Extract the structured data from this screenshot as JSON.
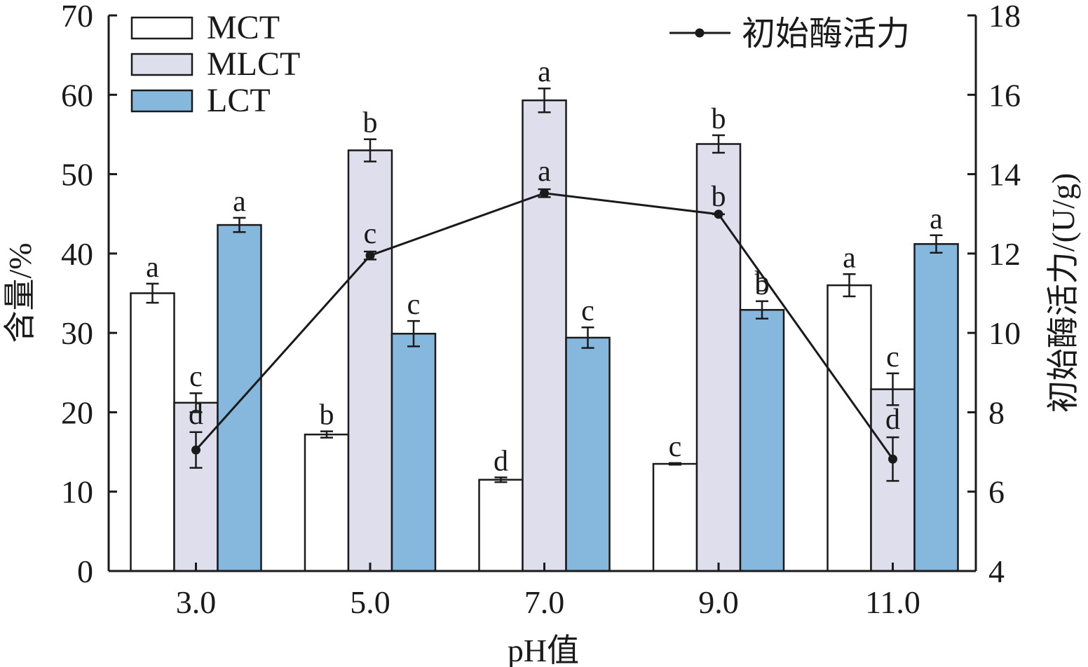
{
  "chart_data": {
    "type": "bar",
    "categories": [
      "3.0",
      "5.0",
      "7.0",
      "9.0",
      "11.0"
    ],
    "xlabel": "pH值",
    "ylabel": "含量/%",
    "ylabel_right": "初始酶活力/(U/g)",
    "ylim": [
      0,
      70
    ],
    "yticks": [
      0,
      10,
      20,
      30,
      40,
      50,
      60,
      70
    ],
    "ylim_right": [
      4,
      18
    ],
    "yticks_right": [
      4,
      6,
      8,
      10,
      12,
      14,
      16,
      18
    ],
    "legend_position": "top-left",
    "line_legend_position": "top-right",
    "series": [
      {
        "name": "MCT",
        "color": "#ffffff",
        "values": [
          35.0,
          17.2,
          11.5,
          13.5,
          36.0
        ],
        "errors": [
          1.2,
          0.4,
          0.3,
          0.1,
          1.4
        ],
        "labels": [
          "a",
          "b",
          "d",
          "c",
          "a"
        ]
      },
      {
        "name": "MLCT",
        "color": "#dfdeec",
        "values": [
          21.2,
          53.0,
          59.3,
          53.8,
          22.9
        ],
        "errors": [
          1.2,
          1.4,
          1.5,
          1.1,
          2.0
        ],
        "labels": [
          "c",
          "b",
          "a",
          "b",
          "c"
        ]
      },
      {
        "name": "LCT",
        "color": "#86b8de",
        "values": [
          43.6,
          29.9,
          29.4,
          32.9,
          41.2
        ],
        "errors": [
          0.9,
          1.6,
          1.3,
          1.1,
          1.1
        ],
        "labels": [
          "a",
          "c",
          "c",
          "b",
          "a"
        ]
      }
    ],
    "line_series": {
      "name": "初始酶活力",
      "axis": "right",
      "color": "#1a1a1a",
      "x": [
        "3.0",
        "5.0",
        "7.0",
        "9.0",
        "11.0"
      ],
      "values": [
        7.05,
        11.95,
        13.52,
        12.99,
        6.82
      ],
      "errors": [
        0.45,
        0.1,
        0.1,
        0.0,
        0.55
      ],
      "labels": [
        "d",
        "c",
        "a",
        "b",
        "d"
      ]
    },
    "extra_labels": [
      {
        "category": "9.0",
        "text": "b",
        "value_right": 11.3
      }
    ]
  }
}
